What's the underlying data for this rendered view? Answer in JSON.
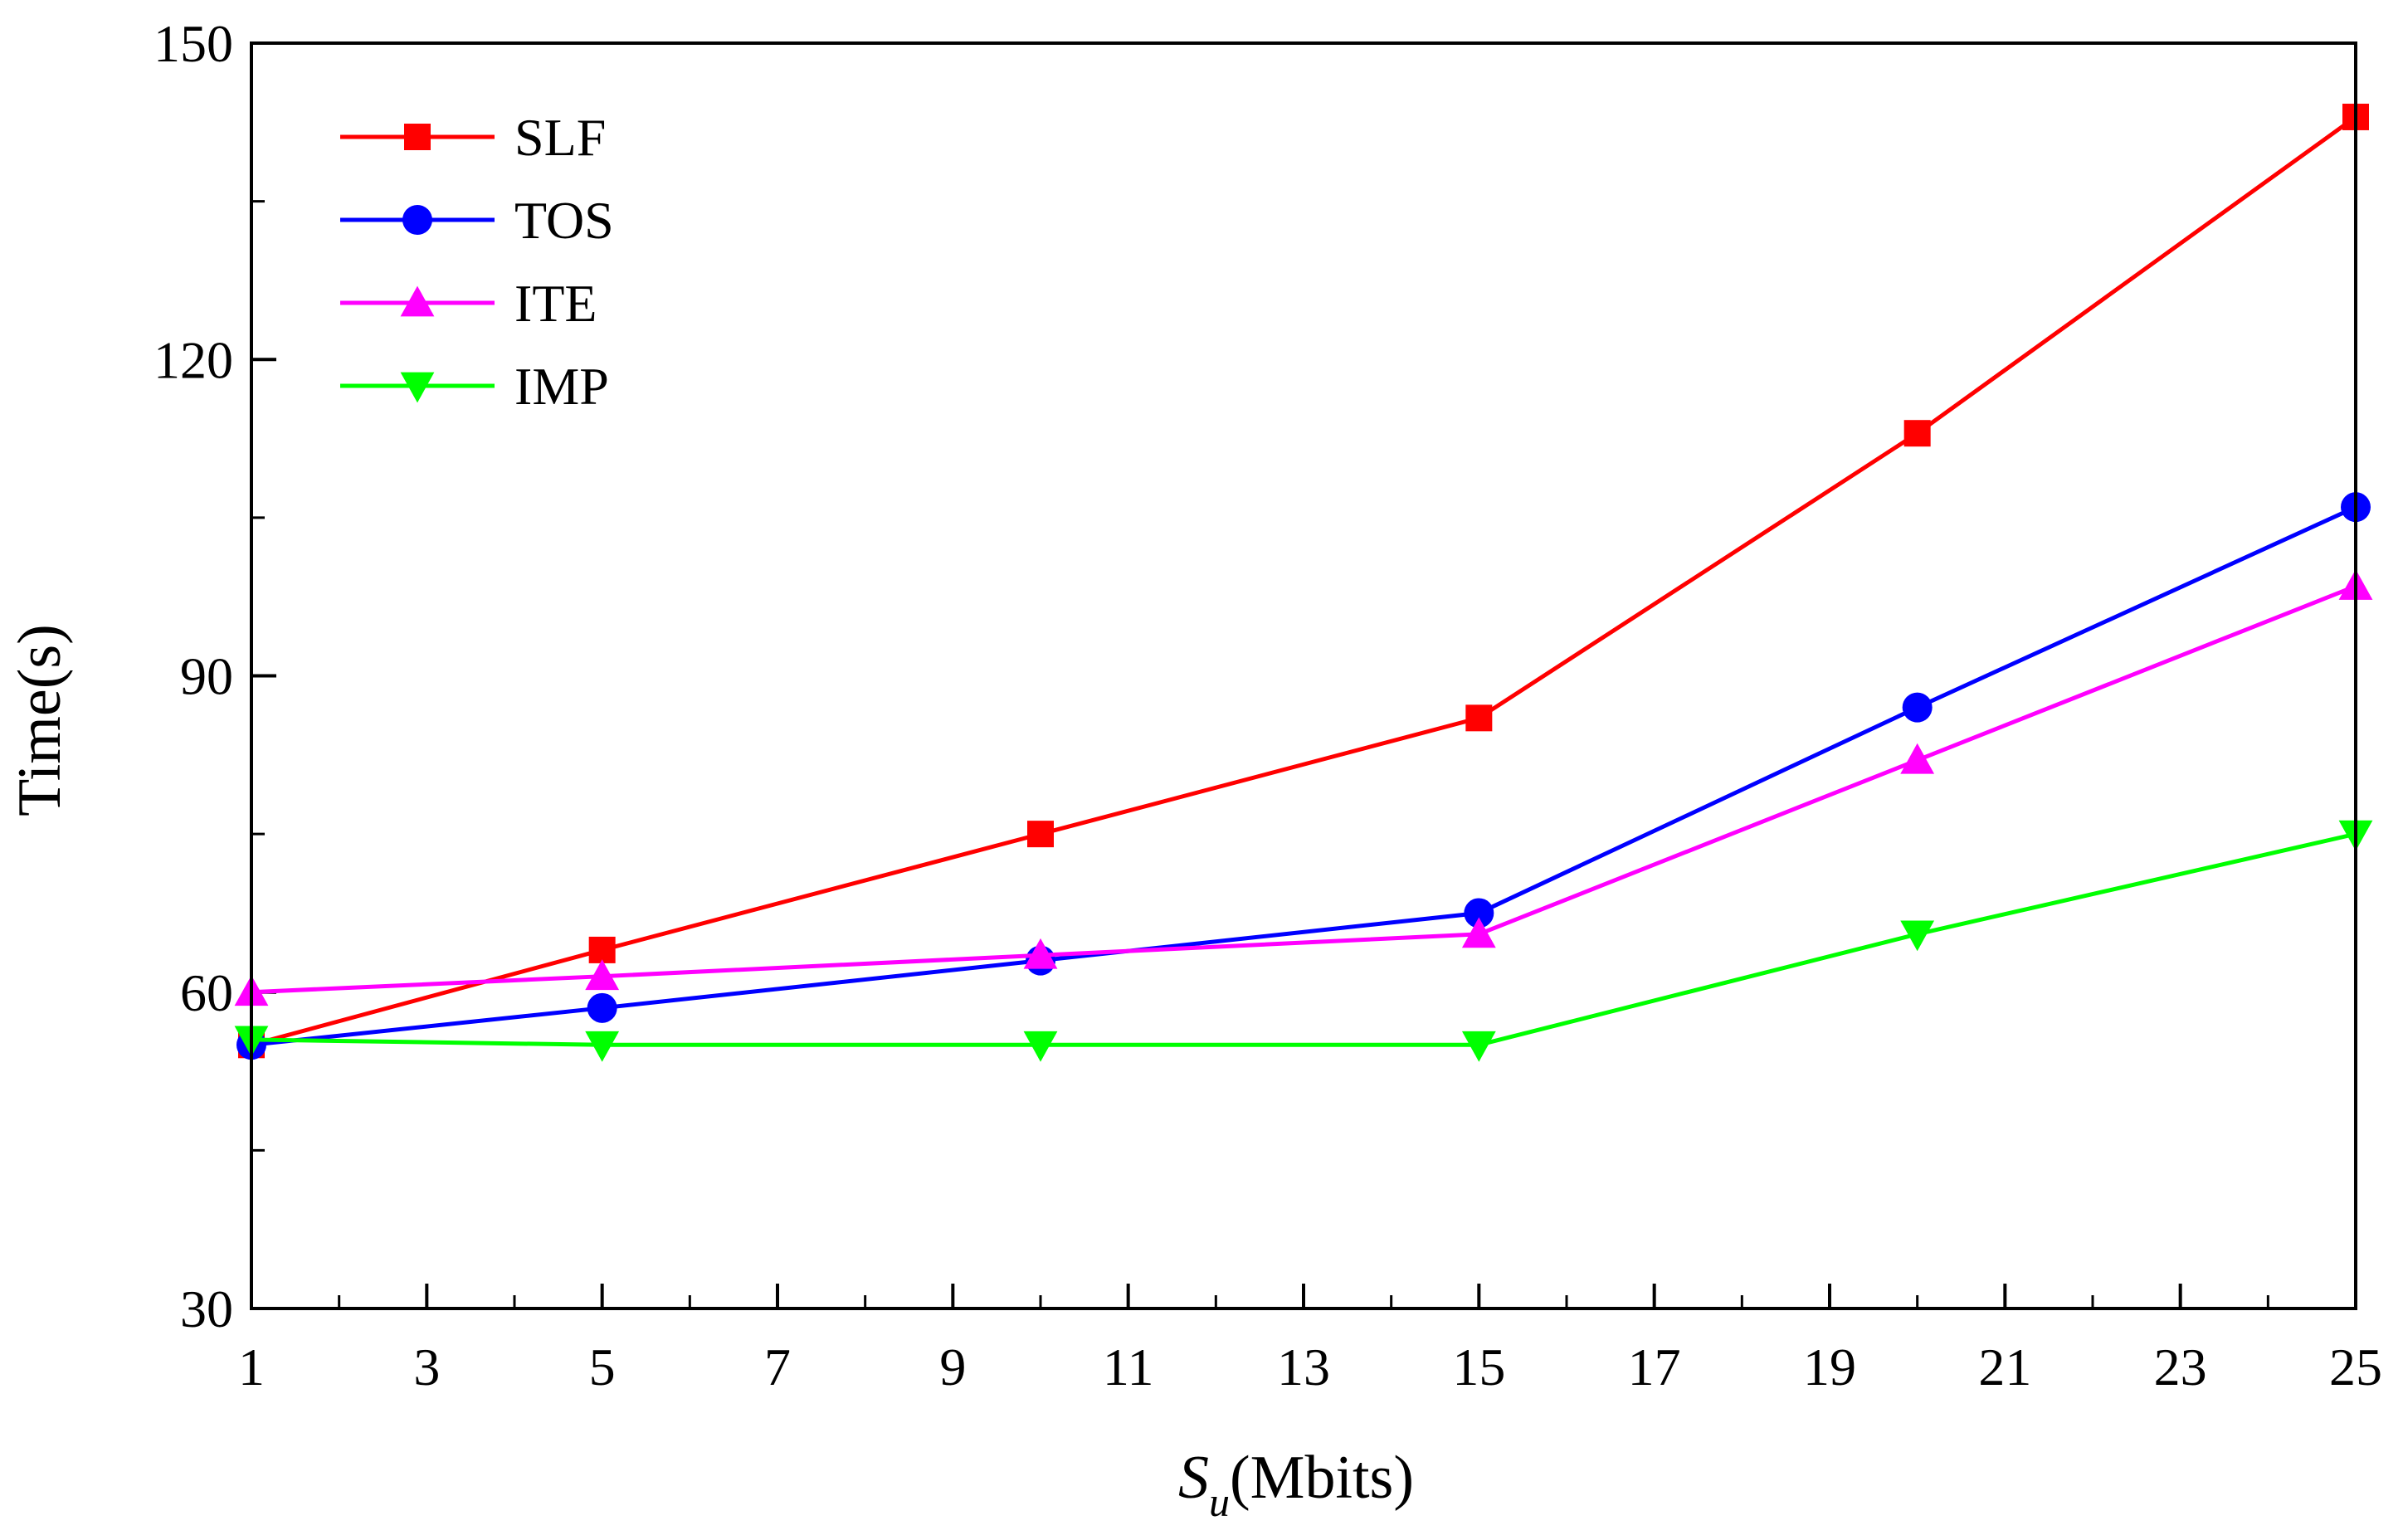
{
  "chart_data": {
    "type": "line",
    "title": "",
    "xlabel": {
      "main": "S",
      "subscript": "u",
      "suffix": "(Mbits)"
    },
    "ylabel": "Time(s)",
    "xlim": [
      1,
      25
    ],
    "ylim": [
      30,
      150
    ],
    "xticks": [
      1,
      3,
      5,
      7,
      9,
      11,
      13,
      15,
      17,
      19,
      21,
      23,
      25
    ],
    "yticks": [
      30,
      60,
      90,
      120,
      150
    ],
    "legend_position": "top-left",
    "series": [
      {
        "name": "SLF",
        "color": "#ff0000",
        "marker": "square",
        "x": [
          1,
          5,
          10,
          15,
          20,
          25
        ],
        "values": [
          55,
          64,
          75,
          86,
          113,
          143
        ]
      },
      {
        "name": "TOS",
        "color": "#0000ff",
        "marker": "circle",
        "x": [
          1,
          5,
          10,
          15,
          20,
          25
        ],
        "values": [
          55,
          58.5,
          63,
          67.5,
          87,
          106
        ]
      },
      {
        "name": "ITE",
        "color": "#ff00ff",
        "marker": "triangle-up",
        "x": [
          1,
          5,
          10,
          15,
          20,
          25
        ],
        "values": [
          60,
          61.5,
          63.5,
          65.5,
          82,
          98.5
        ]
      },
      {
        "name": "IMP",
        "color": "#00ff00",
        "marker": "triangle-down",
        "x": [
          1,
          5,
          10,
          15,
          20,
          25
        ],
        "values": [
          55.5,
          55,
          55,
          55,
          65.5,
          75
        ]
      }
    ]
  }
}
